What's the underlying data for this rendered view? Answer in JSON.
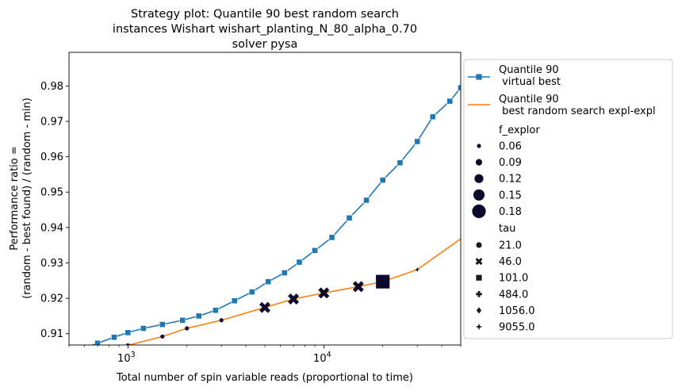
{
  "chart_data": {
    "type": "line",
    "title_lines": [
      "Strategy plot: Quantile 90 best random search",
      "instances Wishart wishart_planting_N_80_alpha_0.70",
      "solver pysa"
    ],
    "xlabel": "Total number of spin variable reads (proportional to time)",
    "ylabel_lines": [
      "Performance ratio =",
      "(random - best found) / (random - min)"
    ],
    "x_scale": "log",
    "xlim": [
      500,
      50000
    ],
    "ylim": [
      0.9068,
      0.9895
    ],
    "grid": false,
    "x_ticks": [
      {
        "value": 1000,
        "base": "10",
        "exp": "3"
      },
      {
        "value": 10000,
        "base": "10",
        "exp": "4"
      }
    ],
    "y_ticks": [
      {
        "value": 0.91,
        "label": "0.91"
      },
      {
        "value": 0.92,
        "label": "0.92"
      },
      {
        "value": 0.93,
        "label": "0.93"
      },
      {
        "value": 0.94,
        "label": "0.94"
      },
      {
        "value": 0.95,
        "label": "0.95"
      },
      {
        "value": 0.96,
        "label": "0.96"
      },
      {
        "value": 0.97,
        "label": "0.97"
      },
      {
        "value": 0.98,
        "label": "0.98"
      }
    ],
    "series": [
      {
        "name": "Quantile 90\n virtual best",
        "color": "#1f77b4",
        "marker": "square",
        "points": [
          {
            "x": 500,
            "y": 0.9045
          },
          {
            "x": 700,
            "y": 0.9073
          },
          {
            "x": 850,
            "y": 0.909
          },
          {
            "x": 1000,
            "y": 0.9103
          },
          {
            "x": 1200,
            "y": 0.9115
          },
          {
            "x": 1500,
            "y": 0.9126
          },
          {
            "x": 1900,
            "y": 0.9138
          },
          {
            "x": 2300,
            "y": 0.915
          },
          {
            "x": 2800,
            "y": 0.9166
          },
          {
            "x": 3500,
            "y": 0.9193
          },
          {
            "x": 4300,
            "y": 0.9218
          },
          {
            "x": 5200,
            "y": 0.9247
          },
          {
            "x": 6300,
            "y": 0.9272
          },
          {
            "x": 7500,
            "y": 0.9302
          },
          {
            "x": 9000,
            "y": 0.9335
          },
          {
            "x": 11000,
            "y": 0.9372
          },
          {
            "x": 13500,
            "y": 0.9427
          },
          {
            "x": 16500,
            "y": 0.9477
          },
          {
            "x": 20000,
            "y": 0.9534
          },
          {
            "x": 24500,
            "y": 0.9583
          },
          {
            "x": 30000,
            "y": 0.9643
          },
          {
            "x": 36000,
            "y": 0.9713
          },
          {
            "x": 44000,
            "y": 0.9757
          },
          {
            "x": 50000,
            "y": 0.9795
          }
        ]
      },
      {
        "name": "Quantile 90\n best random search expl-expl",
        "color": "#ff7f0e",
        "points": [
          {
            "x": 1000,
            "y": 0.9067
          },
          {
            "x": 1500,
            "y": 0.9092
          },
          {
            "x": 2000,
            "y": 0.9115
          },
          {
            "x": 3000,
            "y": 0.9138
          },
          {
            "x": 5000,
            "y": 0.9174
          },
          {
            "x": 7000,
            "y": 0.9198
          },
          {
            "x": 10000,
            "y": 0.9215
          },
          {
            "x": 15000,
            "y": 0.9233
          },
          {
            "x": 20000,
            "y": 0.9247
          },
          {
            "x": 30000,
            "y": 0.9281
          },
          {
            "x": 50000,
            "y": 0.9368
          }
        ]
      }
    ],
    "markers": [
      {
        "x": 1000,
        "y": 0.9067,
        "f_explor": 0.06,
        "tau": "21.0"
      },
      {
        "x": 1500,
        "y": 0.9092,
        "f_explor": 0.06,
        "tau": "21.0"
      },
      {
        "x": 2000,
        "y": 0.9115,
        "f_explor": 0.06,
        "tau": "21.0"
      },
      {
        "x": 3000,
        "y": 0.9138,
        "f_explor": 0.06,
        "tau": "21.0"
      },
      {
        "x": 5000,
        "y": 0.9174,
        "f_explor": 0.12,
        "tau": "46.0"
      },
      {
        "x": 7000,
        "y": 0.9198,
        "f_explor": 0.12,
        "tau": "46.0"
      },
      {
        "x": 10000,
        "y": 0.9215,
        "f_explor": 0.12,
        "tau": "46.0"
      },
      {
        "x": 15000,
        "y": 0.9233,
        "f_explor": 0.12,
        "tau": "46.0"
      },
      {
        "x": 20000,
        "y": 0.9247,
        "f_explor": 0.18,
        "tau": "101.0"
      },
      {
        "x": 30000,
        "y": 0.9281,
        "f_explor": 0.06,
        "tau": "9055.0"
      }
    ],
    "marker_color": "#0c0a2b",
    "legend": {
      "placement": "outside-right",
      "f_explor_title": "f_explor",
      "f_explor_items": [
        {
          "label": "0.06",
          "value": 0.06
        },
        {
          "label": "0.09",
          "value": 0.09
        },
        {
          "label": "0.12",
          "value": 0.12
        },
        {
          "label": "0.15",
          "value": 0.15
        },
        {
          "label": "0.18",
          "value": 0.18
        }
      ],
      "tau_title": "tau",
      "tau_items": [
        {
          "label": "21.0",
          "shape": "circle"
        },
        {
          "label": "46.0",
          "shape": "x"
        },
        {
          "label": "101.0",
          "shape": "square"
        },
        {
          "label": "484.0",
          "shape": "plus"
        },
        {
          "label": "1056.0",
          "shape": "diamond"
        },
        {
          "label": "9055.0",
          "shape": "star"
        }
      ]
    }
  }
}
